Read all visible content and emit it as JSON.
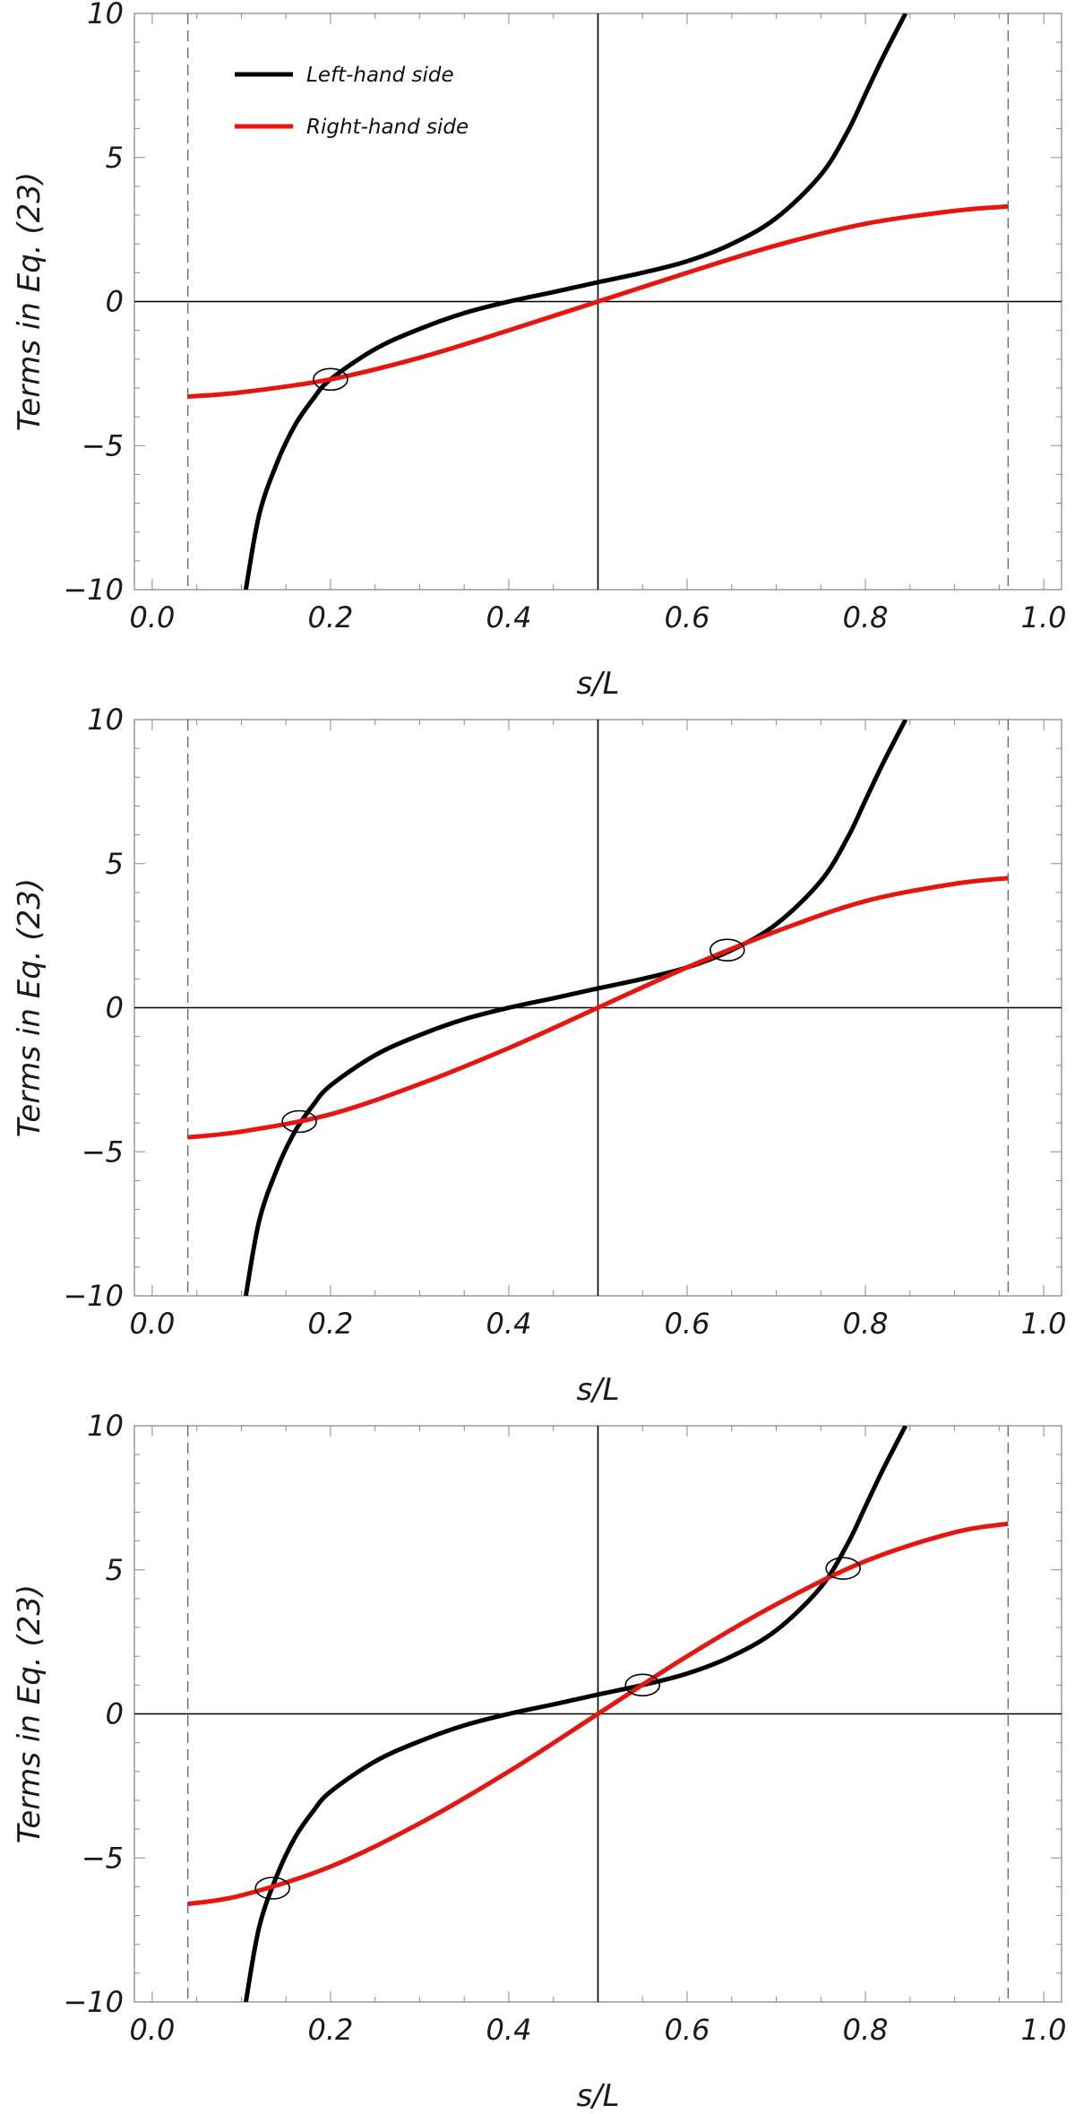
{
  "colors": {
    "left_hand_side": "#000000",
    "right_hand_side": "#e8150f",
    "frame": "#8a8a8a",
    "guide": "#555555"
  },
  "chart_data": [
    {
      "type": "line",
      "xlabel": "s/L",
      "ylabel": "Terms in Eq. (23)",
      "xlim": [
        -0.02,
        1.02
      ],
      "ylim": [
        -10,
        10
      ],
      "xticks": [
        "0.0",
        "0.2",
        "0.4",
        "0.6",
        "0.8",
        "1.0"
      ],
      "yticks": [
        "-10",
        "-5",
        "0",
        "5",
        "10"
      ],
      "grid": false,
      "reference_lines": {
        "x_solid": 0.5,
        "y_solid": 0,
        "x_dashed": [
          0.04,
          0.96
        ]
      },
      "legend": {
        "position": "top-left",
        "entries": [
          "Left-hand side",
          "Right-hand side"
        ]
      },
      "series": [
        {
          "name": "Left-hand side",
          "x": [
            0.105,
            0.12,
            0.14,
            0.16,
            0.18,
            0.2,
            0.25,
            0.3,
            0.35,
            0.4,
            0.45,
            0.5,
            0.55,
            0.6,
            0.65,
            0.7,
            0.75,
            0.78,
            0.8,
            0.82,
            0.845
          ],
          "y": [
            -10,
            -7.4,
            -5.6,
            -4.3,
            -3.4,
            -2.7,
            -1.65,
            -0.95,
            -0.4,
            0.0,
            0.33,
            0.67,
            1.0,
            1.4,
            2.0,
            2.9,
            4.4,
            5.9,
            7.2,
            8.5,
            10
          ]
        },
        {
          "name": "Right-hand side",
          "x": [
            0.04,
            0.1,
            0.2,
            0.3,
            0.4,
            0.5,
            0.6,
            0.7,
            0.8,
            0.9,
            0.96
          ],
          "y": [
            -3.3,
            -3.15,
            -2.7,
            -1.95,
            -1.0,
            0.0,
            1.0,
            1.95,
            2.7,
            3.15,
            3.3
          ]
        }
      ],
      "intersections": [
        {
          "x": 0.2,
          "y": -2.7
        }
      ]
    },
    {
      "type": "line",
      "xlabel": "s/L",
      "ylabel": "Terms in Eq. (23)",
      "xlim": [
        -0.02,
        1.02
      ],
      "ylim": [
        -10,
        10
      ],
      "xticks": [
        "0.0",
        "0.2",
        "0.4",
        "0.6",
        "0.8",
        "1.0"
      ],
      "yticks": [
        "-10",
        "-5",
        "0",
        "5",
        "10"
      ],
      "grid": false,
      "reference_lines": {
        "x_solid": 0.5,
        "y_solid": 0,
        "x_dashed": [
          0.04,
          0.96
        ]
      },
      "series": [
        {
          "name": "Left-hand side",
          "x": [
            0.105,
            0.12,
            0.14,
            0.16,
            0.18,
            0.2,
            0.25,
            0.3,
            0.35,
            0.4,
            0.45,
            0.5,
            0.55,
            0.6,
            0.65,
            0.7,
            0.75,
            0.78,
            0.8,
            0.82,
            0.845
          ],
          "y": [
            -10,
            -7.4,
            -5.6,
            -4.3,
            -3.4,
            -2.7,
            -1.65,
            -0.95,
            -0.4,
            0.0,
            0.33,
            0.67,
            1.0,
            1.4,
            2.0,
            2.9,
            4.4,
            5.9,
            7.2,
            8.5,
            10
          ]
        },
        {
          "name": "Right-hand side",
          "x": [
            0.04,
            0.1,
            0.2,
            0.3,
            0.4,
            0.5,
            0.6,
            0.7,
            0.8,
            0.9,
            0.96
          ],
          "y": [
            -4.5,
            -4.3,
            -3.7,
            -2.65,
            -1.4,
            0.0,
            1.4,
            2.65,
            3.7,
            4.3,
            4.5
          ]
        }
      ],
      "intersections": [
        {
          "x": 0.165,
          "y": -3.95
        },
        {
          "x": 0.645,
          "y": 2.0
        }
      ]
    },
    {
      "type": "line",
      "xlabel": "s/L",
      "ylabel": "Terms in Eq. (23)",
      "xlim": [
        -0.02,
        1.02
      ],
      "ylim": [
        -10,
        10
      ],
      "xticks": [
        "0.0",
        "0.2",
        "0.4",
        "0.6",
        "0.8",
        "1.0"
      ],
      "yticks": [
        "-10",
        "-5",
        "0",
        "5",
        "10"
      ],
      "grid": false,
      "reference_lines": {
        "x_solid": 0.5,
        "y_solid": 0,
        "x_dashed": [
          0.04,
          0.96
        ]
      },
      "series": [
        {
          "name": "Left-hand side",
          "x": [
            0.105,
            0.12,
            0.14,
            0.16,
            0.18,
            0.2,
            0.25,
            0.3,
            0.35,
            0.4,
            0.45,
            0.5,
            0.55,
            0.6,
            0.65,
            0.7,
            0.75,
            0.78,
            0.8,
            0.82,
            0.845
          ],
          "y": [
            -10,
            -7.4,
            -5.6,
            -4.3,
            -3.4,
            -2.7,
            -1.65,
            -0.95,
            -0.4,
            0.0,
            0.33,
            0.67,
            1.0,
            1.4,
            2.0,
            2.9,
            4.4,
            5.9,
            7.2,
            8.5,
            10
          ]
        },
        {
          "name": "Right-hand side",
          "x": [
            0.04,
            0.1,
            0.2,
            0.3,
            0.4,
            0.5,
            0.6,
            0.7,
            0.8,
            0.9,
            0.96
          ],
          "y": [
            -6.6,
            -6.3,
            -5.3,
            -3.8,
            -2.0,
            0.0,
            2.0,
            3.8,
            5.3,
            6.3,
            6.6
          ]
        }
      ],
      "intersections": [
        {
          "x": 0.135,
          "y": -6.05
        },
        {
          "x": 0.55,
          "y": 1.0
        },
        {
          "x": 0.775,
          "y": 5.05
        }
      ]
    }
  ]
}
